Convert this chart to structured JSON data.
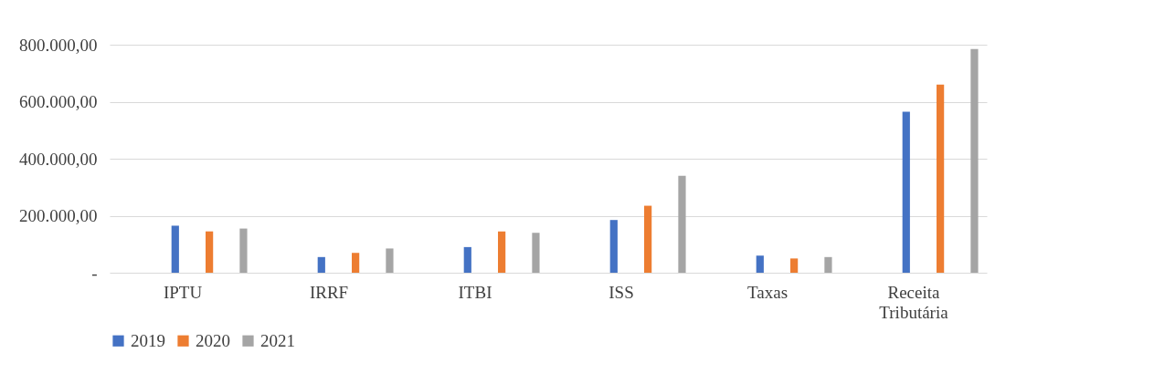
{
  "chart_data": {
    "type": "bar",
    "categories": [
      "IPTU",
      "IRRF",
      "ITBI",
      "ISS",
      "Taxas",
      "Receita Tributária"
    ],
    "series": [
      {
        "name": "2019",
        "color": "#4472c4",
        "values": [
          165000,
          55000,
          90000,
          185000,
          60000,
          565000
        ]
      },
      {
        "name": "2020",
        "color": "#ed7d31",
        "values": [
          145000,
          70000,
          145000,
          235000,
          50000,
          660000
        ]
      },
      {
        "name": "2021",
        "color": "#a5a5a5",
        "values": [
          155000,
          85000,
          140000,
          340000,
          55000,
          785000
        ]
      }
    ],
    "ylim": [
      0,
      800000
    ],
    "yticks": [
      {
        "value": 0,
        "label": "-"
      },
      {
        "value": 200000,
        "label": "200.000,00"
      },
      {
        "value": 400000,
        "label": "400.000,00"
      },
      {
        "value": 600000,
        "label": "600.000,00"
      },
      {
        "value": 800000,
        "label": "800.000,00"
      }
    ],
    "grid": "y",
    "legend": "bottom"
  }
}
